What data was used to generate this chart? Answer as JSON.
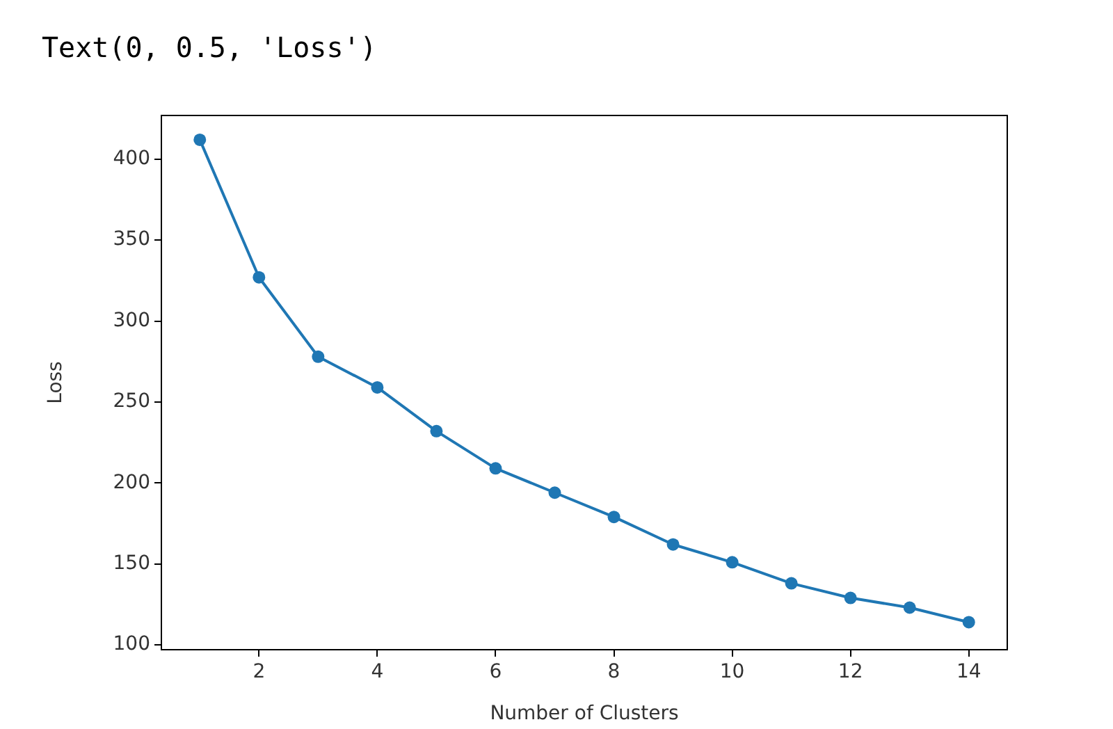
{
  "chart_data": {
    "type": "line",
    "annotations": [
      "Text(0, 0.5, 'Loss')"
    ],
    "xlabel": "Number of Clusters",
    "ylabel": "Loss",
    "x": [
      1,
      2,
      3,
      4,
      5,
      6,
      7,
      8,
      9,
      10,
      11,
      12,
      13,
      14
    ],
    "series": [
      {
        "color": "#1f77b4",
        "values": [
          412,
          327,
          278,
          259,
          232,
          209,
          194,
          179,
          162,
          151,
          138,
          129,
          123,
          114
        ]
      }
    ],
    "xlim": [
      0.35,
      14.65
    ],
    "xticks": [
      2,
      4,
      6,
      8,
      10,
      12,
      14
    ],
    "ylim": [
      97,
      427
    ],
    "yticks": [
      100,
      150,
      200,
      250,
      300,
      350,
      400
    ],
    "grid": false,
    "legend": false,
    "marker": "circle",
    "line_style": "solid"
  }
}
